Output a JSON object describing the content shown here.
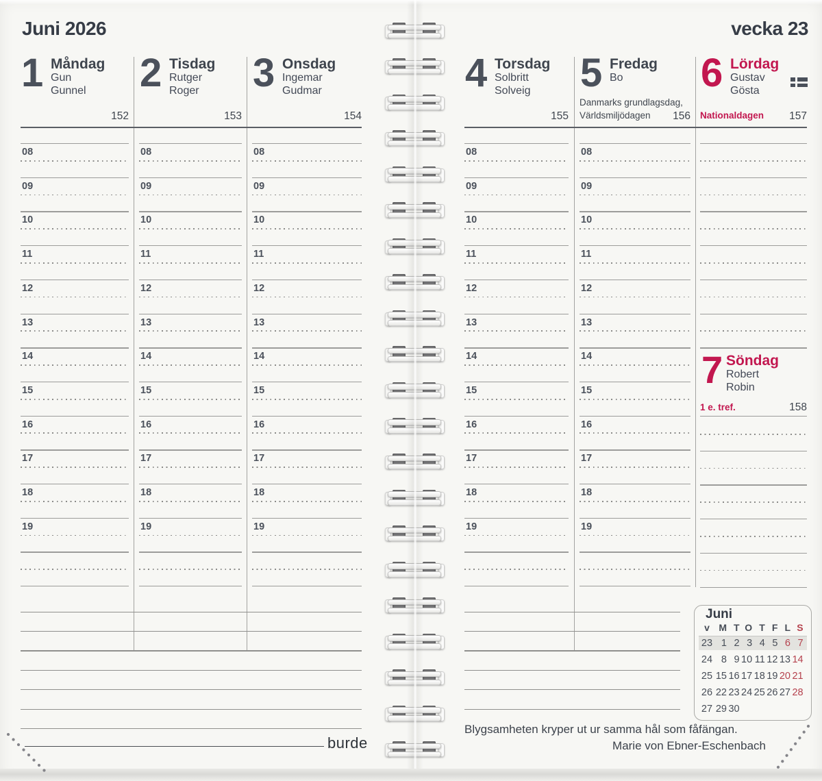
{
  "header": {
    "month_title": "Juni 2026",
    "week_label": "vecka 23"
  },
  "days": [
    {
      "number": "1",
      "name": "Måndag",
      "namedays": [
        "Gun",
        "Gunnel"
      ],
      "day_of_year": "152",
      "red": false
    },
    {
      "number": "2",
      "name": "Tisdag",
      "namedays": [
        "Rutger",
        "Roger"
      ],
      "day_of_year": "153",
      "red": false
    },
    {
      "number": "3",
      "name": "Onsdag",
      "namedays": [
        "Ingemar",
        "Gudmar"
      ],
      "day_of_year": "154",
      "red": false
    },
    {
      "number": "4",
      "name": "Torsdag",
      "namedays": [
        "Solbritt",
        "Solveig"
      ],
      "day_of_year": "155",
      "red": false
    },
    {
      "number": "5",
      "name": "Fredag",
      "namedays": [
        "Bo"
      ],
      "day_of_year": "156",
      "red": false,
      "holiday_lines": [
        "Danmarks grundlagsdag,",
        "Världsmiljödagen"
      ]
    },
    {
      "number": "6",
      "name": "Lördag",
      "namedays": [
        "Gustav",
        "Gösta"
      ],
      "day_of_year": "157",
      "red": true,
      "holiday": "Nationaldagen",
      "flag_icon": "swedish-flag-day"
    }
  ],
  "sunday": {
    "number": "7",
    "name": "Söndag",
    "namedays": [
      "Robert",
      "Robin"
    ],
    "day_of_year": "158",
    "note": "1 e. tref.",
    "red": true
  },
  "hours": [
    "08",
    "09",
    "10",
    "11",
    "12",
    "13",
    "14",
    "15",
    "16",
    "17",
    "18",
    "19"
  ],
  "mini_calendar": {
    "title": "Juni",
    "col_headers": [
      "v",
      "M",
      "T",
      "O",
      "T",
      "F",
      "L",
      "S"
    ],
    "red_header_indexes": [
      7
    ],
    "rows": [
      {
        "week": "23",
        "days": [
          "1",
          "2",
          "3",
          "4",
          "5",
          "6",
          "7"
        ],
        "red": [
          "6",
          "7"
        ],
        "highlight": true
      },
      {
        "week": "24",
        "days": [
          "8",
          "9",
          "10",
          "11",
          "12",
          "13",
          "14"
        ],
        "red": [
          "14"
        ],
        "highlight": false
      },
      {
        "week": "25",
        "days": [
          "15",
          "16",
          "17",
          "18",
          "19",
          "20",
          "21"
        ],
        "red": [
          "20",
          "21"
        ],
        "highlight": false
      },
      {
        "week": "26",
        "days": [
          "22",
          "23",
          "24",
          "25",
          "26",
          "27",
          "28"
        ],
        "red": [
          "28"
        ],
        "highlight": false
      },
      {
        "week": "27",
        "days": [
          "29",
          "30"
        ],
        "red": [],
        "highlight": false
      }
    ]
  },
  "quote": {
    "text": "Blygsamheten kryper ut ur samma hål som fåfängan.",
    "author": "Marie von Ebner-Eschenbach"
  },
  "brand": "burde",
  "colors": {
    "accent_red": "#c2174f",
    "calendar_red": "#b5424e",
    "ink": "#3f454e",
    "line_gray": "#9c9c9a"
  }
}
